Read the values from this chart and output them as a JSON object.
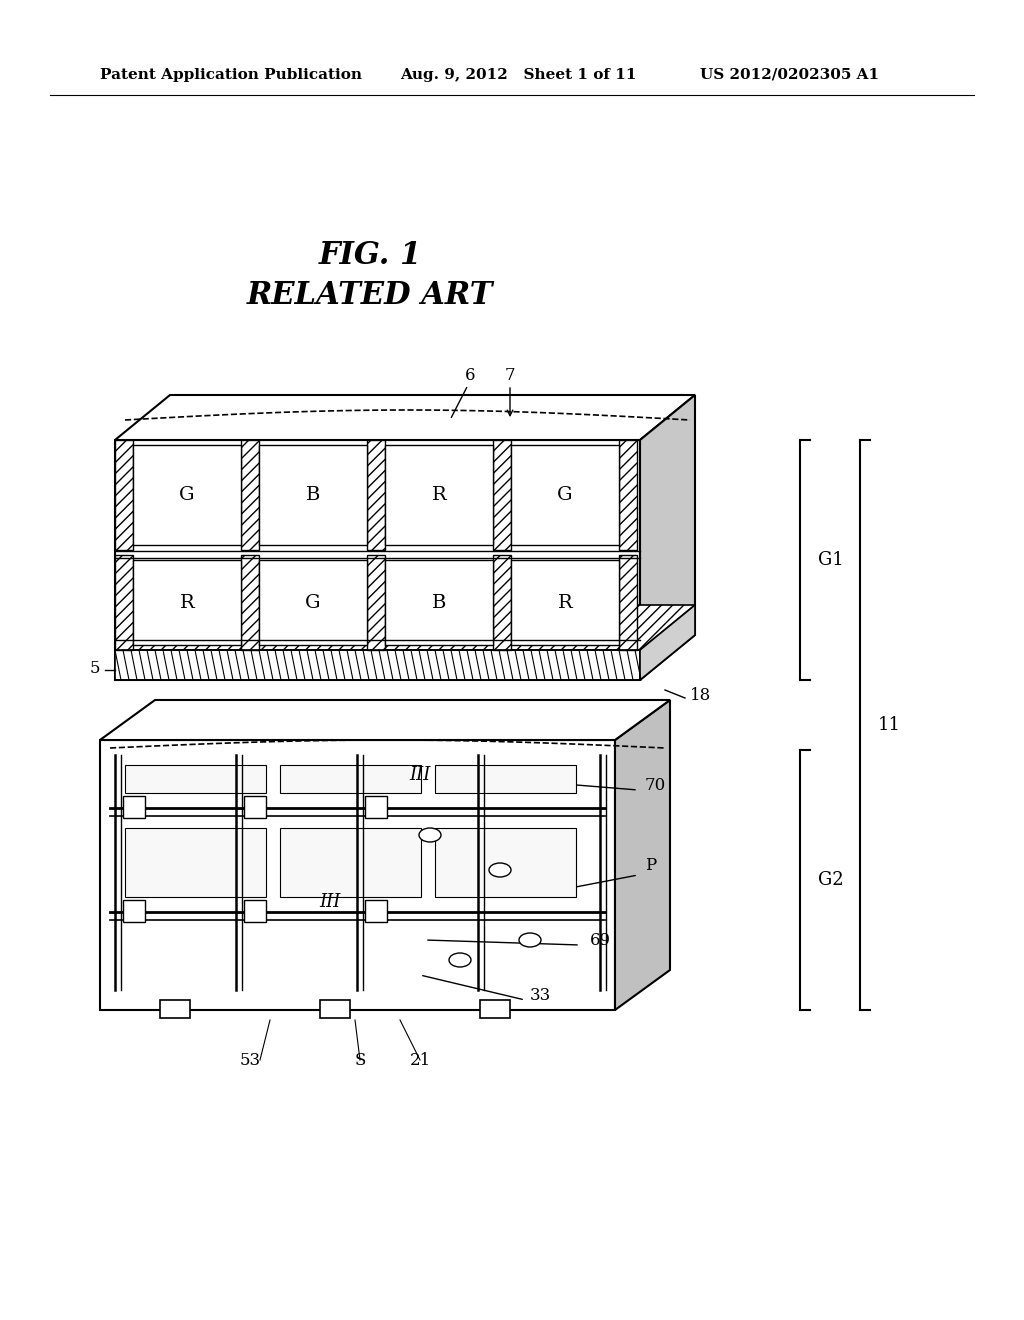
{
  "bg_color": "#ffffff",
  "header_left": "Patent Application Publication",
  "header_mid": "Aug. 9, 2012   Sheet 1 of 11",
  "header_right": "US 2012/0202305 A1",
  "fig_title_line1": "FIG. 1",
  "fig_title_line2": "RELATED ART",
  "label_6": "6",
  "label_7": "7",
  "label_5": "5",
  "label_18": "18",
  "label_11": "11",
  "label_G1": "G1",
  "label_G2": "G2",
  "label_70": "70",
  "label_P": "P",
  "label_69": "69",
  "label_33": "33",
  "label_21": "21",
  "label_S": "S",
  "label_53": "53",
  "label_III_top": "III",
  "label_III_bot": "III"
}
